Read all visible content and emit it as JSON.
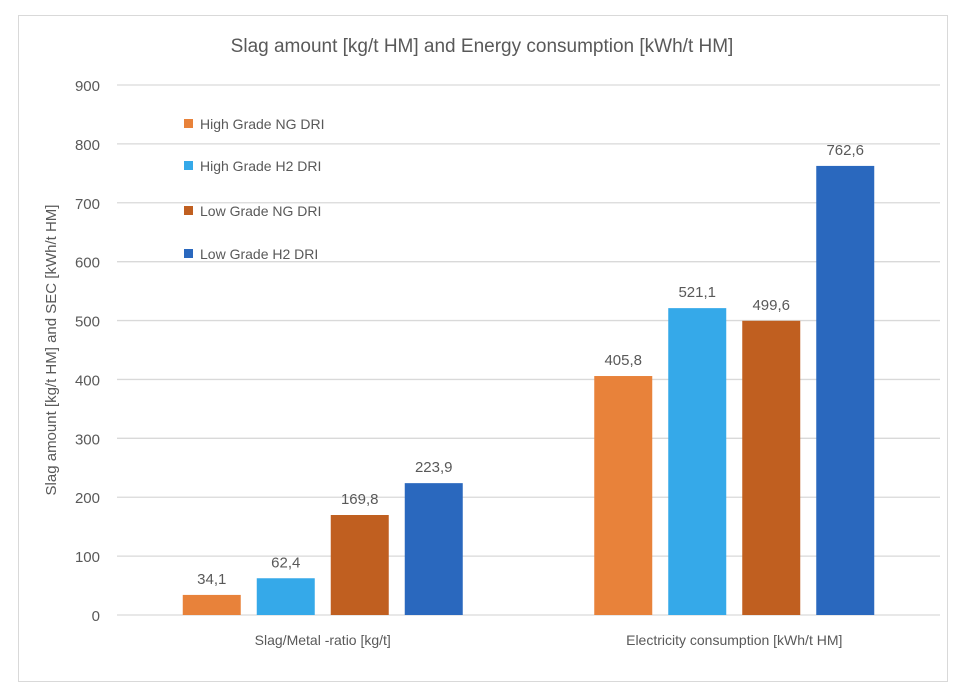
{
  "chart_data": {
    "type": "bar",
    "title": "Slag amount [kg/t HM] and Energy consumption [kWh/t HM]",
    "xlabel": "",
    "ylabel": "Slag amount [kg/t HM] and SEC [kWh/t HM]",
    "ylim": [
      0,
      900
    ],
    "yticks": [
      "0",
      "100",
      "200",
      "300",
      "400",
      "500",
      "600",
      "700",
      "800",
      "900"
    ],
    "grid": true,
    "legend_placement": "top-left",
    "categories": [
      "Slag/Metal -ratio [kg/t]",
      "Electricity consumption [kWh/t HM]"
    ],
    "series": [
      {
        "name": "High Grade NG DRI",
        "color": "#E8823A",
        "values": [
          34.1,
          405.8
        ],
        "labels": [
          "34,1",
          "405,8"
        ]
      },
      {
        "name": "High Grade H2 DRI",
        "color": "#35A9E9",
        "values": [
          62.4,
          521.1
        ],
        "labels": [
          "62,4",
          "521,1"
        ]
      },
      {
        "name": "Low Grade NG DRI",
        "color": "#C05F20",
        "values": [
          169.8,
          499.6
        ],
        "labels": [
          "169,8",
          "499,6"
        ]
      },
      {
        "name": "Low Grade H2 DRI",
        "color": "#2A68BE",
        "values": [
          223.9,
          762.6
        ],
        "labels": [
          "223,9",
          "762,6"
        ]
      }
    ]
  }
}
